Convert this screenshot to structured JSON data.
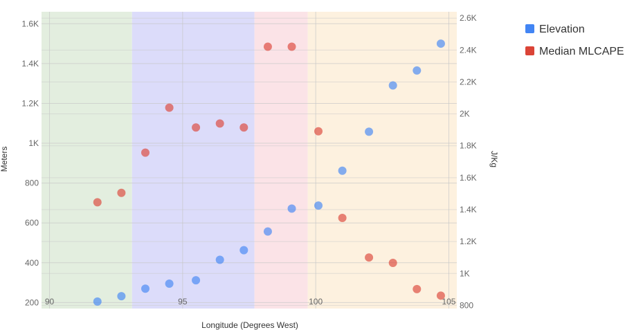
{
  "chart_data": {
    "type": "scatter",
    "xlabel": "Longitude (Degrees West)",
    "ylabel_left": "Meters",
    "ylabel_right": "J/Kg",
    "x_ticks": [
      "90",
      "95",
      "100",
      "105"
    ],
    "y_left_ticks": [
      "200",
      "400",
      "600",
      "800",
      "1K",
      "1.2K",
      "1.4K",
      "1.6K"
    ],
    "y_right_ticks": [
      "800",
      "1K",
      "1.2K",
      "1.4K",
      "1.6K",
      "1.8K",
      "2K",
      "2.2K",
      "2.4K",
      "2.6K"
    ],
    "xlim": [
      89.7,
      105.3
    ],
    "ylim_left": [
      170,
      1660
    ],
    "ylim_right": [
      780,
      2640
    ],
    "grid": true,
    "legend_position": "right",
    "bands": [
      {
        "x0": 89.7,
        "x1": 93.1,
        "color": "#e3eedf"
      },
      {
        "x0": 93.1,
        "x1": 97.7,
        "color": "#dcdcfa"
      },
      {
        "x0": 97.7,
        "x1": 99.7,
        "color": "#fbe3e7"
      },
      {
        "x0": 99.7,
        "x1": 105.3,
        "color": "#fdf1df"
      }
    ],
    "series": [
      {
        "name": "Elevation",
        "axis": "left",
        "color": "#4285f4",
        "points": [
          [
            91.8,
            205
          ],
          [
            92.7,
            232
          ],
          [
            93.6,
            270
          ],
          [
            94.5,
            295
          ],
          [
            95.5,
            312
          ],
          [
            96.4,
            415
          ],
          [
            97.3,
            463
          ],
          [
            98.2,
            557
          ],
          [
            99.1,
            672
          ],
          [
            100.1,
            687
          ],
          [
            101.0,
            862
          ],
          [
            102.0,
            1058
          ],
          [
            102.9,
            1290
          ],
          [
            103.8,
            1365
          ],
          [
            104.7,
            1500
          ]
        ]
      },
      {
        "name": "Median MLCAPE",
        "axis": "right",
        "color": "#db4437",
        "points": [
          [
            91.8,
            1446
          ],
          [
            92.7,
            1505
          ],
          [
            93.6,
            1757
          ],
          [
            94.5,
            2039
          ],
          [
            95.5,
            1915
          ],
          [
            96.4,
            1940
          ],
          [
            97.3,
            1915
          ],
          [
            98.2,
            2421
          ],
          [
            99.1,
            2421
          ],
          [
            100.1,
            1891
          ],
          [
            101.0,
            1348
          ],
          [
            102.0,
            1100
          ],
          [
            102.9,
            1066
          ],
          [
            103.8,
            902
          ],
          [
            104.7,
            861
          ]
        ]
      }
    ]
  }
}
